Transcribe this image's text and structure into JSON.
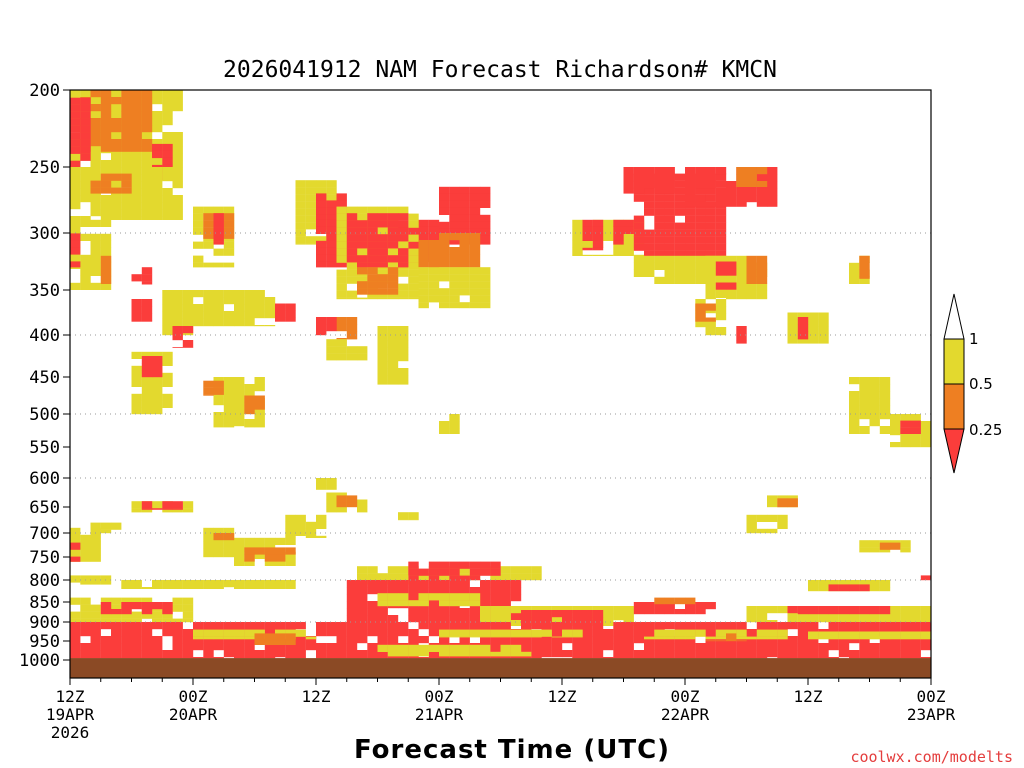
{
  "chart_data": {
    "type": "heatmap",
    "title": "2026041912 NAM Forecast Richardson# KMCN",
    "xlabel": "Forecast Time (UTC)",
    "ylabel": "",
    "y_ticks": [
      "200",
      "250",
      "300",
      "350",
      "400",
      "450",
      "500",
      "550",
      "600",
      "650",
      "700",
      "750",
      "800",
      "850",
      "900",
      "950",
      "1000"
    ],
    "y_levels": [
      200,
      250,
      300,
      350,
      400,
      450,
      500,
      550,
      600,
      650,
      700,
      750,
      800,
      850,
      900,
      950,
      1000
    ],
    "y_gridlines": [
      300,
      400,
      500,
      600,
      700,
      800,
      900
    ],
    "x_range_hours": [
      0,
      84
    ],
    "x_ticks": [
      {
        "hour": 0,
        "time": "12Z",
        "date": "19APR",
        "year": "2026"
      },
      {
        "hour": 12,
        "time": "00Z",
        "date": "20APR",
        "year": ""
      },
      {
        "hour": 24,
        "time": "12Z",
        "date": "",
        "year": ""
      },
      {
        "hour": 36,
        "time": "00Z",
        "date": "21APR",
        "year": ""
      },
      {
        "hour": 48,
        "time": "12Z",
        "date": "",
        "year": ""
      },
      {
        "hour": 60,
        "time": "00Z",
        "date": "22APR",
        "year": ""
      },
      {
        "hour": 72,
        "time": "12Z",
        "date": "",
        "year": ""
      },
      {
        "hour": 84,
        "time": "00Z",
        "date": "23APR",
        "year": ""
      }
    ],
    "legend": {
      "position": "right",
      "labels": [
        "1",
        "0.5",
        "0.25"
      ],
      "bins": [
        {
          "range": "> 1",
          "color": "#ffffff"
        },
        {
          "range": "0.5 - 1",
          "color": "#e3d92e"
        },
        {
          "range": "0.25 - 0.5",
          "color": "#ee7f22"
        },
        {
          "range": "< 0.25",
          "color": "#fb3d3b"
        }
      ]
    },
    "colors": {
      "low": "#fb3d3b",
      "mid": "#ee7f22",
      "high": "#e3d92e",
      "ground": "#8b4a25"
    },
    "regions": [
      {
        "h0": 0,
        "h1": 11,
        "p0": 200,
        "p1": 250,
        "cat": "high"
      },
      {
        "h0": 1,
        "h1": 8,
        "p0": 200,
        "p1": 240,
        "cat": "mid"
      },
      {
        "h0": 0,
        "h1": 2,
        "p0": 205,
        "p1": 250,
        "cat": "low"
      },
      {
        "h0": 8,
        "h1": 10,
        "p0": 235,
        "p1": 260,
        "cat": "low"
      },
      {
        "h0": 0,
        "h1": 11,
        "p0": 250,
        "p1": 290,
        "cat": "high"
      },
      {
        "h0": 2,
        "h1": 6,
        "p0": 255,
        "p1": 270,
        "cat": "mid"
      },
      {
        "h0": 0,
        "h1": 4,
        "p0": 290,
        "p1": 350,
        "cat": "high"
      },
      {
        "h0": 0,
        "h1": 1,
        "p0": 295,
        "p1": 330,
        "cat": "low"
      },
      {
        "h0": 3,
        "h1": 4,
        "p0": 320,
        "p1": 345,
        "cat": "mid"
      },
      {
        "h0": 6,
        "h1": 8,
        "p0": 330,
        "p1": 345,
        "cat": "low"
      },
      {
        "h0": 6,
        "h1": 8,
        "p0": 360,
        "p1": 385,
        "cat": "low"
      },
      {
        "h0": 9,
        "h1": 12,
        "p0": 350,
        "p1": 400,
        "cat": "high"
      },
      {
        "h0": 10,
        "h1": 12,
        "p0": 390,
        "p1": 415,
        "cat": "low"
      },
      {
        "h0": 6,
        "h1": 10,
        "p0": 420,
        "p1": 500,
        "cat": "high"
      },
      {
        "h0": 7,
        "h1": 9,
        "p0": 425,
        "p1": 450,
        "cat": "low"
      },
      {
        "h0": 12,
        "h1": 16,
        "p0": 280,
        "p1": 330,
        "cat": "high"
      },
      {
        "h0": 13,
        "h1": 16,
        "p0": 285,
        "p1": 305,
        "cat": "mid"
      },
      {
        "h0": 14,
        "h1": 15,
        "p0": 285,
        "p1": 310,
        "cat": "low"
      },
      {
        "h0": 12,
        "h1": 20,
        "p0": 350,
        "p1": 390,
        "cat": "high"
      },
      {
        "h0": 20,
        "h1": 22,
        "p0": 365,
        "p1": 385,
        "cat": "low"
      },
      {
        "h0": 14,
        "h1": 19,
        "p0": 450,
        "p1": 520,
        "cat": "high"
      },
      {
        "h0": 17,
        "h1": 19,
        "p0": 475,
        "p1": 500,
        "cat": "mid"
      },
      {
        "h0": 13,
        "h1": 15,
        "p0": 455,
        "p1": 475,
        "cat": "mid"
      },
      {
        "h0": 22,
        "h1": 26,
        "p0": 260,
        "p1": 310,
        "cat": "high"
      },
      {
        "h0": 24,
        "h1": 27,
        "p0": 270,
        "p1": 290,
        "cat": "low"
      },
      {
        "h0": 24,
        "h1": 36,
        "p0": 290,
        "p1": 330,
        "cat": "low"
      },
      {
        "h0": 26,
        "h1": 34,
        "p0": 280,
        "p1": 360,
        "cat": "high"
      },
      {
        "h0": 27,
        "h1": 33,
        "p0": 285,
        "p1": 330,
        "cat": "low"
      },
      {
        "h0": 28,
        "h1": 32,
        "p0": 330,
        "p1": 355,
        "cat": "mid"
      },
      {
        "h0": 36,
        "h1": 41,
        "p0": 265,
        "p1": 310,
        "cat": "low"
      },
      {
        "h0": 34,
        "h1": 40,
        "p0": 300,
        "p1": 330,
        "cat": "mid"
      },
      {
        "h0": 34,
        "h1": 41,
        "p0": 330,
        "p1": 370,
        "cat": "high"
      },
      {
        "h0": 26,
        "h1": 28,
        "p0": 380,
        "p1": 405,
        "cat": "mid"
      },
      {
        "h0": 24,
        "h1": 26,
        "p0": 380,
        "p1": 400,
        "cat": "low"
      },
      {
        "h0": 25,
        "h1": 29,
        "p0": 405,
        "p1": 430,
        "cat": "high"
      },
      {
        "h0": 30,
        "h1": 33,
        "p0": 390,
        "p1": 460,
        "cat": "high"
      },
      {
        "h0": 36,
        "h1": 38,
        "p0": 500,
        "p1": 530,
        "cat": "high"
      },
      {
        "h0": 24,
        "h1": 26,
        "p0": 600,
        "p1": 620,
        "cat": "high"
      },
      {
        "h0": 25,
        "h1": 29,
        "p0": 625,
        "p1": 660,
        "cat": "high"
      },
      {
        "h0": 26,
        "h1": 28,
        "p0": 630,
        "p1": 650,
        "cat": "mid"
      },
      {
        "h0": 21,
        "h1": 25,
        "p0": 665,
        "p1": 710,
        "cat": "high"
      },
      {
        "h0": 32,
        "h1": 34,
        "p0": 660,
        "p1": 675,
        "cat": "high"
      },
      {
        "h0": 49,
        "h1": 56,
        "p0": 290,
        "p1": 320,
        "cat": "high"
      },
      {
        "h0": 50,
        "h1": 52,
        "p0": 290,
        "p1": 315,
        "cat": "low"
      },
      {
        "h0": 53,
        "h1": 55,
        "p0": 290,
        "p1": 310,
        "cat": "low"
      },
      {
        "h0": 55,
        "h1": 64,
        "p0": 255,
        "p1": 320,
        "cat": "low"
      },
      {
        "h0": 54,
        "h1": 59,
        "p0": 250,
        "p1": 270,
        "cat": "low"
      },
      {
        "h0": 55,
        "h1": 64,
        "p0": 320,
        "p1": 345,
        "cat": "high"
      },
      {
        "h0": 60,
        "h1": 69,
        "p0": 250,
        "p1": 280,
        "cat": "low"
      },
      {
        "h0": 65,
        "h1": 68,
        "p0": 250,
        "p1": 265,
        "cat": "mid"
      },
      {
        "h0": 62,
        "h1": 68,
        "p0": 320,
        "p1": 360,
        "cat": "high"
      },
      {
        "h0": 63,
        "h1": 65,
        "p0": 325,
        "p1": 350,
        "cat": "low"
      },
      {
        "h0": 66,
        "h1": 68,
        "p0": 320,
        "p1": 345,
        "cat": "mid"
      },
      {
        "h0": 61,
        "h1": 64,
        "p0": 360,
        "p1": 400,
        "cat": "high"
      },
      {
        "h0": 61,
        "h1": 63,
        "p0": 365,
        "p1": 385,
        "cat": "mid"
      },
      {
        "h0": 65,
        "h1": 66,
        "p0": 390,
        "p1": 410,
        "cat": "low"
      },
      {
        "h0": 70,
        "h1": 74,
        "p0": 375,
        "p1": 410,
        "cat": "high"
      },
      {
        "h0": 71,
        "h1": 72,
        "p0": 380,
        "p1": 405,
        "cat": "low"
      },
      {
        "h0": 76,
        "h1": 78,
        "p0": 320,
        "p1": 345,
        "cat": "high"
      },
      {
        "h0": 77,
        "h1": 78,
        "p0": 320,
        "p1": 340,
        "cat": "mid"
      },
      {
        "h0": 76,
        "h1": 80,
        "p0": 450,
        "p1": 530,
        "cat": "high"
      },
      {
        "h0": 80,
        "h1": 84,
        "p0": 500,
        "p1": 550,
        "cat": "high"
      },
      {
        "h0": 81,
        "h1": 83,
        "p0": 510,
        "p1": 530,
        "cat": "low"
      },
      {
        "h0": 68,
        "h1": 71,
        "p0": 630,
        "p1": 650,
        "cat": "high"
      },
      {
        "h0": 69,
        "h1": 71,
        "p0": 635,
        "p1": 650,
        "cat": "mid"
      },
      {
        "h0": 66,
        "h1": 70,
        "p0": 665,
        "p1": 700,
        "cat": "high"
      },
      {
        "h0": 77,
        "h1": 82,
        "p0": 715,
        "p1": 740,
        "cat": "high"
      },
      {
        "h0": 79,
        "h1": 81,
        "p0": 720,
        "p1": 735,
        "cat": "mid"
      },
      {
        "h0": 0,
        "h1": 3,
        "p0": 690,
        "p1": 760,
        "cat": "high"
      },
      {
        "h0": 0,
        "h1": 1,
        "p0": 720,
        "p1": 760,
        "cat": "low"
      },
      {
        "h0": 2,
        "h1": 5,
        "p0": 680,
        "p1": 700,
        "cat": "high"
      },
      {
        "h0": 6,
        "h1": 12,
        "p0": 640,
        "p1": 660,
        "cat": "high"
      },
      {
        "h0": 7,
        "h1": 11,
        "p0": 640,
        "p1": 655,
        "cat": "low"
      },
      {
        "h0": 13,
        "h1": 16,
        "p0": 690,
        "p1": 750,
        "cat": "high"
      },
      {
        "h0": 16,
        "h1": 22,
        "p0": 710,
        "p1": 770,
        "cat": "high"
      },
      {
        "h0": 17,
        "h1": 22,
        "p0": 730,
        "p1": 760,
        "cat": "mid"
      },
      {
        "h0": 13,
        "h1": 16,
        "p0": 700,
        "p1": 715,
        "cat": "mid"
      },
      {
        "h0": 28,
        "h1": 46,
        "p0": 770,
        "p1": 800,
        "cat": "high"
      },
      {
        "h0": 33,
        "h1": 42,
        "p0": 760,
        "p1": 800,
        "cat": "low"
      },
      {
        "h0": 28,
        "h1": 33,
        "p0": 790,
        "p1": 810,
        "cat": "high"
      },
      {
        "h0": 5,
        "h1": 14,
        "p0": 800,
        "p1": 820,
        "cat": "high"
      },
      {
        "h0": 0,
        "h1": 4,
        "p0": 790,
        "p1": 810,
        "cat": "high"
      },
      {
        "h0": 14,
        "h1": 22,
        "p0": 800,
        "p1": 820,
        "cat": "high"
      },
      {
        "h0": 72,
        "h1": 80,
        "p0": 800,
        "p1": 825,
        "cat": "high"
      },
      {
        "h0": 74,
        "h1": 78,
        "p0": 810,
        "p1": 825,
        "cat": "low"
      },
      {
        "h0": 82,
        "h1": 84,
        "p0": 790,
        "p1": 800,
        "cat": "low"
      },
      {
        "h0": 0,
        "h1": 12,
        "p0": 840,
        "p1": 900,
        "cat": "high"
      },
      {
        "h0": 3,
        "h1": 10,
        "p0": 850,
        "p1": 880,
        "cat": "low"
      },
      {
        "h0": 27,
        "h1": 44,
        "p0": 800,
        "p1": 900,
        "cat": "low"
      },
      {
        "h0": 30,
        "h1": 40,
        "p0": 830,
        "p1": 860,
        "cat": "high"
      },
      {
        "h0": 40,
        "h1": 55,
        "p0": 860,
        "p1": 910,
        "cat": "high"
      },
      {
        "h0": 44,
        "h1": 52,
        "p0": 870,
        "p1": 900,
        "cat": "low"
      },
      {
        "h0": 55,
        "h1": 63,
        "p0": 850,
        "p1": 880,
        "cat": "low"
      },
      {
        "h0": 57,
        "h1": 61,
        "p0": 840,
        "p1": 855,
        "cat": "mid"
      },
      {
        "h0": 66,
        "h1": 84,
        "p0": 860,
        "p1": 900,
        "cat": "high"
      },
      {
        "h0": 70,
        "h1": 80,
        "p0": 860,
        "p1": 880,
        "cat": "low"
      },
      {
        "h0": 0,
        "h1": 84,
        "p0": 900,
        "p1": 995,
        "cat": "low"
      },
      {
        "h0": 12,
        "h1": 24,
        "p0": 920,
        "p1": 945,
        "cat": "high"
      },
      {
        "h0": 18,
        "h1": 22,
        "p0": 930,
        "p1": 960,
        "cat": "mid"
      },
      {
        "h0": 36,
        "h1": 50,
        "p0": 920,
        "p1": 940,
        "cat": "high"
      },
      {
        "h0": 56,
        "h1": 70,
        "p0": 920,
        "p1": 945,
        "cat": "high"
      },
      {
        "h0": 62,
        "h1": 66,
        "p0": 930,
        "p1": 950,
        "cat": "mid"
      },
      {
        "h0": 72,
        "h1": 84,
        "p0": 925,
        "p1": 945,
        "cat": "high"
      },
      {
        "h0": 30,
        "h1": 45,
        "p0": 960,
        "p1": 990,
        "cat": "high"
      }
    ],
    "ground_level": 995
  },
  "watermark": "coolwx.com/modelts"
}
